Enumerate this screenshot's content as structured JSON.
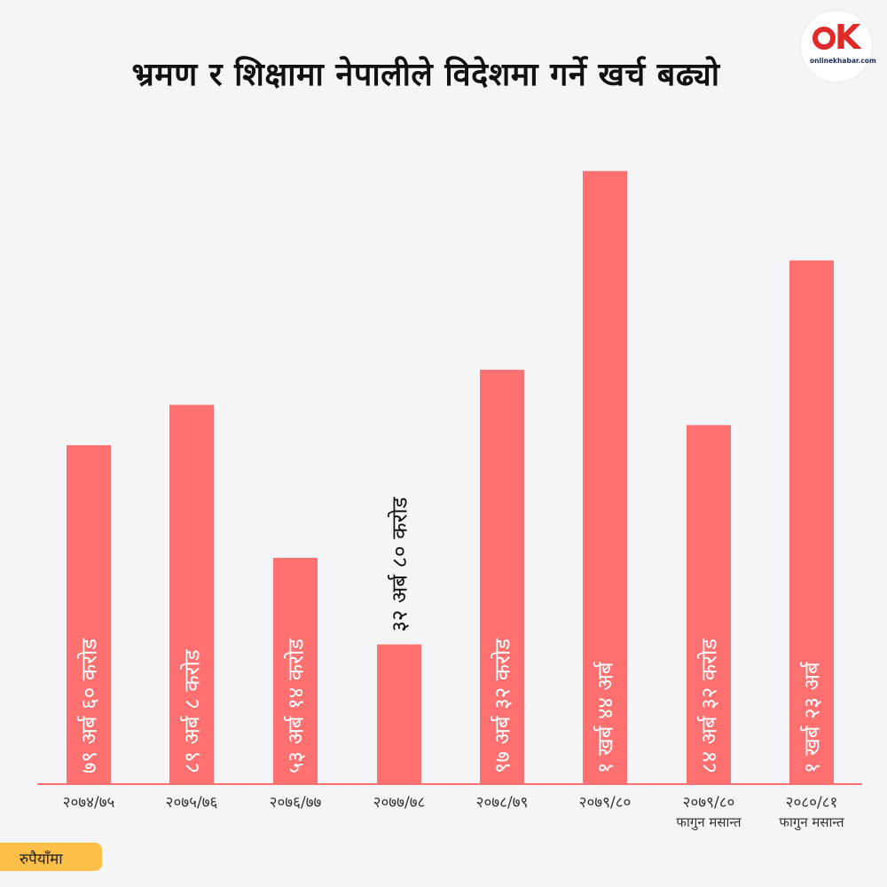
{
  "header": {
    "title": "भ्रमण र शिक्षामा नेपालीले विदेशमा गर्ने खर्च बढ्यो",
    "logo_text": "onlinekhabar.com"
  },
  "unit_label": "रुपैयाँमा",
  "colors": {
    "bar": "#ff7070",
    "axis": "#ff7070",
    "label_inside": "#ffffff",
    "label_outside": "#111111",
    "unit_bg": "#ffc04a"
  },
  "chart_data": {
    "type": "bar",
    "categories": [
      "२०७४/७५",
      "२०७५/७६",
      "२०७६/७७",
      "२०७७/७८",
      "२०७८/७९",
      "२०७९/८०",
      "२०७९/८०",
      "२०८०/८१"
    ],
    "category_sublabels": [
      "",
      "",
      "",
      "",
      "",
      "",
      "फागुन मसान्त",
      "फागुन मसान्त"
    ],
    "values": [
      79.6,
      89.08,
      53.14,
      32.8,
      97.32,
      144,
      84.32,
      123
    ],
    "value_unit": "अर्ब",
    "data_labels": [
      "७९ अर्ब ६० करोड",
      "८९ अर्ब ८ करोड",
      "५३ अर्ब १४ करोड",
      "३२ अर्ब ८० करोड",
      "९७ अर्ब ३२ करोड",
      "१ खर्ब ४४ अर्ब",
      "८४ अर्ब ३२ करोड",
      "१ खर्ब २३ अर्ब"
    ],
    "label_inside": [
      true,
      true,
      true,
      false,
      true,
      true,
      true,
      true
    ],
    "ylim": [
      0,
      150
    ],
    "xlabel": "",
    "ylabel": "",
    "grid": false,
    "legend": "none"
  }
}
